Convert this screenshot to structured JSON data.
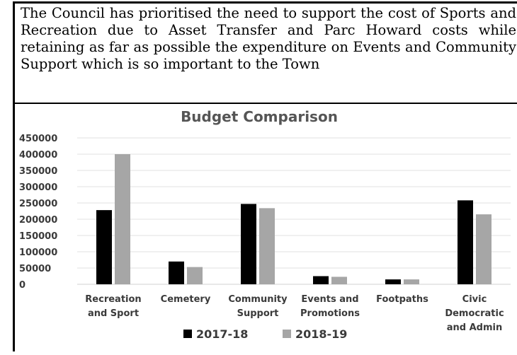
{
  "intro_text": "The Council has prioritised the need to support the cost of Sports and Recreation due to Asset Transfer and Parc Howard costs while retaining as far as possible the expenditure on Events and Community Support which is so important to the Town",
  "chart_data": {
    "type": "bar",
    "title": "Budget Comparison",
    "categories": [
      [
        "Recreation",
        "and Sport"
      ],
      [
        "Cemetery"
      ],
      [
        "Community",
        "Support"
      ],
      [
        "Events and",
        "Promotions"
      ],
      [
        "Footpaths"
      ],
      [
        "Civic",
        "Democratic",
        "and Admin"
      ]
    ],
    "series": [
      {
        "name": "2017-18",
        "color": "#000000",
        "values": [
          228000,
          70000,
          247000,
          25000,
          15000,
          258000
        ]
      },
      {
        "name": "2018-19",
        "color": "#a6a6a6",
        "values": [
          400000,
          53000,
          234000,
          23000,
          15000,
          215000
        ]
      }
    ],
    "ylim": [
      0,
      450000
    ],
    "yticks": [
      "0",
      "50000",
      "100000",
      "150000",
      "200000",
      "250000",
      "300000",
      "350000",
      "400000",
      "450000"
    ],
    "grid": true,
    "legend": "bottom"
  }
}
